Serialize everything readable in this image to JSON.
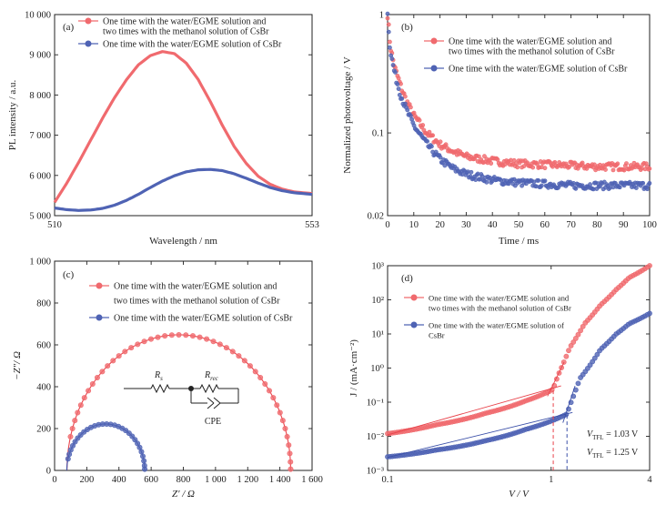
{
  "colors": {
    "red": "#f06a6e",
    "blue": "#4f63b4",
    "red_line": "#e8424a",
    "blue_line": "#3a4fa8"
  },
  "chart_data": [
    {
      "type": "line",
      "panel_label": "(a)",
      "xlabel": "Wavelength / nm",
      "ylabel": "PL intensity / a.u.",
      "xlim": [
        510,
        553
      ],
      "ylim": [
        5000,
        10000
      ],
      "x_ticks": [
        "510",
        "553"
      ],
      "y_ticks": [
        "5 000",
        "6 000",
        "7 000",
        "8 000",
        "9 000",
        "10 000"
      ],
      "legend_position": "top-left",
      "legend": [
        [
          "One time with the water/EGME solution and",
          "two times with the methanol solution of CsBr"
        ],
        [
          "One time with the water/EGME solution of CsBr"
        ]
      ],
      "series": [
        {
          "color": "red",
          "x": [
            510,
            512,
            514,
            516,
            518,
            520,
            522,
            524,
            526,
            528,
            530,
            532,
            534,
            536,
            538,
            540,
            542,
            544,
            546,
            548,
            550,
            553
          ],
          "y": [
            5330,
            5800,
            6320,
            6870,
            7420,
            7930,
            8380,
            8750,
            8980,
            9080,
            9030,
            8790,
            8380,
            7840,
            7250,
            6720,
            6300,
            5980,
            5780,
            5660,
            5590,
            5550
          ]
        },
        {
          "color": "blue",
          "x": [
            510,
            512,
            514,
            516,
            518,
            520,
            522,
            524,
            526,
            528,
            530,
            532,
            534,
            536,
            538,
            540,
            542,
            544,
            546,
            548,
            550,
            553
          ],
          "y": [
            5190,
            5150,
            5130,
            5140,
            5180,
            5260,
            5380,
            5530,
            5700,
            5860,
            5990,
            6090,
            6140,
            6150,
            6120,
            6040,
            5930,
            5810,
            5700,
            5620,
            5570,
            5530
          ]
        }
      ]
    },
    {
      "type": "scatter",
      "panel_label": "(b)",
      "xlabel": "Time / ms",
      "ylabel": "Normalized photovoltage / V",
      "xlim": [
        0,
        100
      ],
      "ylim": [
        0.02,
        1
      ],
      "y_scale": "log",
      "x_ticks": [
        "0",
        "10",
        "20",
        "30",
        "40",
        "50",
        "60",
        "70",
        "80",
        "90",
        "100"
      ],
      "y_ticks": [
        "0.02",
        "0.1",
        "1"
      ],
      "legend_position": "top-right",
      "legend": [
        [
          "One time with the water/EGME solution and",
          "two times with the methanol solution of CsBr"
        ],
        [
          "One time with the water/EGME solution of CsBr"
        ]
      ],
      "series": [
        {
          "color": "red",
          "x": [
            0,
            1,
            2,
            3,
            5,
            7,
            10,
            15,
            20,
            25,
            30,
            40,
            50,
            60,
            70,
            80,
            90,
            100
          ],
          "y": [
            1.0,
            0.55,
            0.42,
            0.34,
            0.25,
            0.19,
            0.14,
            0.1,
            0.08,
            0.07,
            0.063,
            0.058,
            0.055,
            0.054,
            0.053,
            0.052,
            0.052,
            0.052
          ]
        },
        {
          "color": "blue",
          "x": [
            0,
            1,
            2,
            3,
            5,
            7,
            10,
            15,
            20,
            25,
            30,
            40,
            50,
            60,
            70,
            80,
            90,
            100
          ],
          "y": [
            1.0,
            0.5,
            0.38,
            0.3,
            0.21,
            0.16,
            0.115,
            0.08,
            0.06,
            0.05,
            0.045,
            0.04,
            0.038,
            0.037,
            0.036,
            0.036,
            0.036,
            0.036
          ]
        }
      ]
    },
    {
      "type": "scatter",
      "panel_label": "(c)",
      "xlabel": "Z′ / Ω",
      "ylabel": "−Z″/ Ω",
      "xlim": [
        0,
        1600
      ],
      "ylim": [
        0,
        1000
      ],
      "x_ticks": [
        "0",
        "200",
        "400",
        "600",
        "800",
        "1 000",
        "1 200",
        "1 400",
        "1 600"
      ],
      "y_ticks": [
        "0",
        "200",
        "400",
        "600",
        "800",
        "1 000"
      ],
      "legend_position": "top-left",
      "legend": [
        [
          "One time with the water/EGME solution  and",
          "two times with the methanol solution of CsBr"
        ],
        [
          "One time with the water/EGME solution of CsBr"
        ]
      ],
      "inset": {
        "r1": "R",
        "r1_sub": "s",
        "r2": "R",
        "r2_sub": "rec",
        "cpe": "CPE"
      },
      "series": [
        {
          "color": "red",
          "center_x": 772,
          "radius": 695,
          "peak": 648
        },
        {
          "color": "blue",
          "center_x": 318,
          "radius": 242,
          "peak": 222
        }
      ]
    },
    {
      "type": "scatter",
      "panel_label": "(d)",
      "xlabel": "V / V",
      "ylabel": "J / (mA·cm⁻²)",
      "xlim": [
        0.1,
        4
      ],
      "ylim": [
        0.001,
        1000
      ],
      "x_scale": "log",
      "y_scale": "log",
      "x_ticks": [
        "0.1",
        "1",
        "4"
      ],
      "y_ticks": [
        "10⁻³",
        "10⁻²",
        "10⁻¹",
        "10⁰",
        "10¹",
        "10²",
        "10³"
      ],
      "legend_position": "top-left",
      "legend": [
        [
          "One time with the water/EGME solution and",
          "two times with the methanol solution of CsBr"
        ],
        [
          "One time with the water/EGME solution of",
          "CsBr"
        ]
      ],
      "annotations": [
        {
          "color": "red",
          "label": "V",
          "sub": "TFL",
          "value": " = 1.03 V"
        },
        {
          "color": "blue",
          "label": "V",
          "sub": "TFL",
          "value": " = 1.25 V"
        }
      ],
      "series": [
        {
          "color": "red",
          "x": [
            0.1,
            0.2,
            0.4,
            0.7,
            1.0,
            1.03,
            1.1,
            1.3,
            1.6,
            2.0,
            2.5,
            3.0,
            4.0
          ],
          "y": [
            0.012,
            0.022,
            0.048,
            0.11,
            0.22,
            0.25,
            0.6,
            4,
            20,
            70,
            200,
            450,
            1000
          ]
        },
        {
          "color": "blue",
          "x": [
            0.1,
            0.2,
            0.4,
            0.7,
            1.0,
            1.25,
            1.3,
            1.5,
            2.0,
            2.5,
            3.0,
            4.0
          ],
          "y": [
            0.0025,
            0.004,
            0.0075,
            0.016,
            0.028,
            0.045,
            0.08,
            0.5,
            3.5,
            10,
            20,
            40
          ]
        }
      ]
    }
  ]
}
